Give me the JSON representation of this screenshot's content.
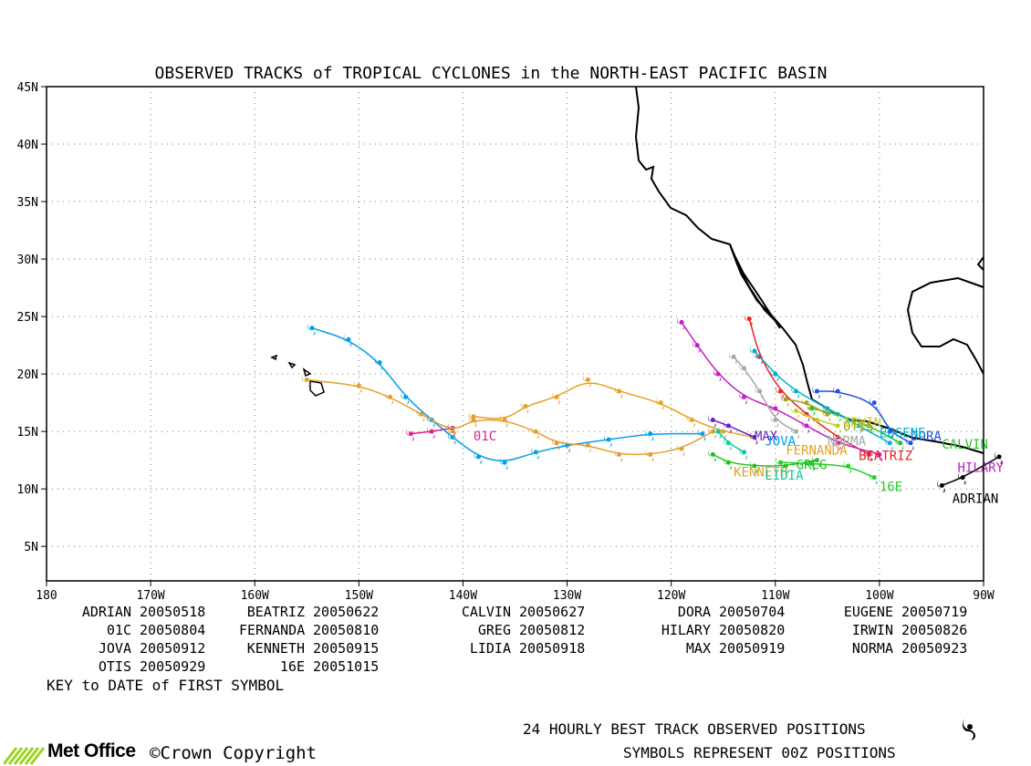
{
  "title": "OBSERVED TRACKS of TROPICAL CYCLONES in the NORTH-EAST PACIFIC BASIN",
  "lat_labels": [
    "45N",
    "40N",
    "35N",
    "30N",
    "25N",
    "20N",
    "15N",
    "10N",
    "5N"
  ],
  "lon_labels": [
    "180",
    "170W",
    "160W",
    "150W",
    "140W",
    "130W",
    "120W",
    "110W",
    "100W",
    "90W"
  ],
  "key_title": "KEY to DATE of FIRST SYMBOL",
  "key": [
    {
      "name": "ADRIAN",
      "date": "20050518"
    },
    {
      "name": "BEATRIZ",
      "date": "20050622"
    },
    {
      "name": "CALVIN",
      "date": "20050627"
    },
    {
      "name": "DORA",
      "date": "20050704"
    },
    {
      "name": "EUGENE",
      "date": "20050719"
    },
    {
      "name": "01C",
      "date": "20050804"
    },
    {
      "name": "FERNANDA",
      "date": "20050810"
    },
    {
      "name": "GREG",
      "date": "20050812"
    },
    {
      "name": "HILARY",
      "date": "20050820"
    },
    {
      "name": "IRWIN",
      "date": "20050826"
    },
    {
      "name": "JOVA",
      "date": "20050912"
    },
    {
      "name": "KENNETH",
      "date": "20050915"
    },
    {
      "name": "LIDIA",
      "date": "20050918"
    },
    {
      "name": "MAX",
      "date": "20050919"
    },
    {
      "name": "NORMA",
      "date": "20050923"
    },
    {
      "name": "OTIS",
      "date": "20050929"
    },
    {
      "name": "16E",
      "date": "20051015"
    }
  ],
  "footer": {
    "line1": "24 HOURLY BEST TRACK OBSERVED POSITIONS",
    "line2": "SYMBOLS REPRESENT 00Z POSITIONS",
    "brand": "Met Office",
    "copyright": "©Crown Copyright"
  },
  "map_extent": {
    "lon_min": -180,
    "lon_max": -90,
    "lat_min": 2,
    "lat_max": 45
  },
  "storms": [
    {
      "name": "ADRIAN",
      "label": "ADRIAN",
      "color": "#000000",
      "points": [
        [
          -88.5,
          12.8
        ],
        [
          -92,
          11
        ],
        [
          -94,
          10.3
        ]
      ]
    },
    {
      "name": "BEATRIZ",
      "label": "BEATRIZ",
      "color": "#e8202a",
      "points": [
        [
          -101,
          13
        ],
        [
          -104,
          14.5
        ],
        [
          -107,
          16.5
        ],
        [
          -109.5,
          18.5
        ],
        [
          -111.5,
          21.5
        ],
        [
          -112.5,
          24.8
        ]
      ]
    },
    {
      "name": "CALVIN",
      "label": "CALVIN",
      "color": "#23c223",
      "points": [
        [
          -98,
          14
        ],
        [
          -101,
          15.5
        ],
        [
          -104,
          16.5
        ],
        [
          -106.5,
          17
        ]
      ]
    },
    {
      "name": "DORA",
      "label": "DORA",
      "color": "#2050e0",
      "points": [
        [
          -97,
          14
        ],
        [
          -99,
          15
        ],
        [
          -100.5,
          17.5
        ],
        [
          -104,
          18.5
        ],
        [
          -106,
          18.5
        ]
      ]
    },
    {
      "name": "EUGENE",
      "label": "EUGENE",
      "color": "#00b0d0",
      "points": [
        [
          -99,
          14
        ],
        [
          -102,
          15.5
        ],
        [
          -105,
          17
        ],
        [
          -108,
          18.5
        ],
        [
          -110,
          20
        ],
        [
          -112,
          22
        ]
      ]
    },
    {
      "name": "01C",
      "label": "01C",
      "color": "#e0208a",
      "points": [
        [
          -145,
          14.8
        ],
        [
          -143,
          15
        ],
        [
          -141,
          15.3
        ]
      ]
    },
    {
      "name": "FERNANDA",
      "label": "FERNANDA",
      "color": "#e8a020",
      "points": [
        [
          -112,
          14.5
        ],
        [
          -115,
          15
        ],
        [
          -118,
          16
        ],
        [
          -121,
          17.5
        ],
        [
          -125,
          18.5
        ],
        [
          -128,
          19.5
        ],
        [
          -131,
          18
        ],
        [
          -134,
          17.2
        ],
        [
          -136,
          16
        ],
        [
          -139,
          16.3
        ]
      ]
    },
    {
      "name": "GREG",
      "label": "GREG",
      "color": "#1ec01e",
      "points": [
        [
          -106,
          12.5
        ],
        [
          -109,
          12
        ],
        [
          -112,
          12
        ],
        [
          -114.5,
          12.3
        ],
        [
          -116,
          13
        ]
      ]
    },
    {
      "name": "HILARY",
      "label": "HILARY",
      "color": "#c020c0",
      "points": [
        [
          -100,
          13
        ],
        [
          -104,
          14
        ],
        [
          -107,
          15.5
        ],
        [
          -110,
          17
        ],
        [
          -113,
          18
        ],
        [
          -115.5,
          20
        ],
        [
          -117.5,
          22.5
        ],
        [
          -119,
          24.5
        ]
      ]
    },
    {
      "name": "IRWIN",
      "label": "IRWIN",
      "color": "#c0d020",
      "points": [
        [
          -104,
          15.5
        ],
        [
          -106,
          16
        ],
        [
          -108,
          16.8
        ]
      ]
    },
    {
      "name": "JOVA",
      "label": "JOVA",
      "color": "#00a0e8",
      "points": [
        [
          -117,
          14.8
        ],
        [
          -122,
          14.8
        ],
        [
          -126,
          14.3
        ],
        [
          -130,
          13.8
        ],
        [
          -133,
          13.2
        ],
        [
          -136,
          12.3
        ],
        [
          -138.5,
          12.8
        ],
        [
          -141,
          14.5
        ],
        [
          -143,
          16
        ],
        [
          -145.5,
          18
        ],
        [
          -148,
          21
        ],
        [
          -151,
          23
        ],
        [
          -154.5,
          24
        ]
      ]
    },
    {
      "name": "KENNETH",
      "label": "KENNETH",
      "color": "#e0a030",
      "points": [
        [
          -116,
          15
        ],
        [
          -119,
          13.5
        ],
        [
          -122,
          13
        ],
        [
          -125,
          13
        ],
        [
          -128,
          13.8
        ],
        [
          -131,
          14
        ],
        [
          -133,
          15
        ],
        [
          -136,
          16
        ],
        [
          -139,
          16
        ],
        [
          -141,
          15
        ],
        [
          -144,
          16.5
        ],
        [
          -147,
          18
        ],
        [
          -150,
          19
        ],
        [
          -155,
          19.5
        ]
      ]
    },
    {
      "name": "LIDIA",
      "label": "LIDIA",
      "color": "#10c8a0",
      "points": [
        [
          -113,
          13.2
        ],
        [
          -114.5,
          14
        ],
        [
          -115.5,
          15
        ]
      ]
    },
    {
      "name": "MAX",
      "label": "MAX",
      "color": "#6a1fc0",
      "points": [
        [
          -112,
          14.5
        ],
        [
          -114.5,
          15.5
        ],
        [
          -116,
          16
        ]
      ]
    },
    {
      "name": "NORMA",
      "label": "NORMA",
      "color": "#a8a8a8",
      "points": [
        [
          -108,
          15
        ],
        [
          -110,
          16
        ],
        [
          -111.5,
          18.5
        ],
        [
          -113,
          20.5
        ],
        [
          -114,
          21.5
        ]
      ]
    },
    {
      "name": "OTIS",
      "label": "OTIS",
      "color": "#a8a020",
      "points": [
        [
          -105,
          16.5
        ],
        [
          -107,
          17.5
        ],
        [
          -109,
          17.8
        ]
      ]
    },
    {
      "name": "16E",
      "label": "16E",
      "color": "#22d022",
      "points": [
        [
          -100.5,
          11
        ],
        [
          -103,
          12
        ],
        [
          -106.5,
          12.2
        ],
        [
          -109.5,
          12.3
        ]
      ]
    }
  ]
}
